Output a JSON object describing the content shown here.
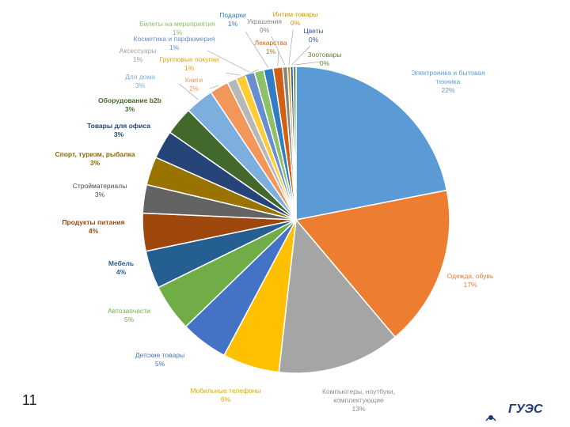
{
  "slide": {
    "number": "11",
    "logo_text": "ГУЭС"
  },
  "chart_data": {
    "type": "pie",
    "slices": [
      {
        "label": "Электроника и бытовая техника",
        "pct_label": "22%",
        "value": 22,
        "color": "#5B9BD5",
        "label_color": "#5B9BD5",
        "bold": false
      },
      {
        "label": "Одежда, обувь",
        "pct_label": "17%",
        "value": 17,
        "color": "#ED7D31",
        "label_color": "#ED7D31",
        "bold": false
      },
      {
        "label": "Компьютеры, ноутбуки, комплектующие",
        "pct_label": "13%",
        "value": 13,
        "color": "#A5A5A5",
        "label_color": "#8C8C8C",
        "bold": false
      },
      {
        "label": "Мобильные телефоны",
        "pct_label": "6%",
        "value": 6,
        "color": "#FFC000",
        "label_color": "#E0A800",
        "bold": false
      },
      {
        "label": "Детские товары",
        "pct_label": "5%",
        "value": 5,
        "color": "#4472C4",
        "label_color": "#4472C4",
        "bold": false
      },
      {
        "label": "Автозапчасти",
        "pct_label": "5%",
        "value": 5,
        "color": "#70AD47",
        "label_color": "#70AD47",
        "bold": false
      },
      {
        "label": "Мебель",
        "pct_label": "4%",
        "value": 4,
        "color": "#255E91",
        "label_color": "#255E91",
        "bold": true
      },
      {
        "label": "Продукты питания",
        "pct_label": "4%",
        "value": 4,
        "color": "#9E480E",
        "label_color": "#9E480E",
        "bold": true
      },
      {
        "label": "Стройматериалы",
        "pct_label": "3%",
        "value": 3,
        "color": "#636363",
        "label_color": "#4A4A4A",
        "bold": false
      },
      {
        "label": "Спорт, туризм, рыбалка",
        "pct_label": "3%",
        "value": 3,
        "color": "#997300",
        "label_color": "#8A6800",
        "bold": true
      },
      {
        "label": "Товары для офиса",
        "pct_label": "3%",
        "value": 3,
        "color": "#264478",
        "label_color": "#264478",
        "bold": true
      },
      {
        "label": "Оборудование b2b",
        "pct_label": "3%",
        "value": 3,
        "color": "#43682B",
        "label_color": "#43682B",
        "bold": true
      },
      {
        "label": "Для дома",
        "pct_label": "3%",
        "value": 3,
        "color": "#7CAFDD",
        "label_color": "#7CAFDD",
        "bold": false
      },
      {
        "label": "Книги",
        "pct_label": "2%",
        "value": 2,
        "color": "#F1975A",
        "label_color": "#F1975A",
        "bold": false
      },
      {
        "label": "Аксессуары",
        "pct_label": "1%",
        "value": 1,
        "color": "#B7B7B7",
        "label_color": "#A0A0A0",
        "bold": false
      },
      {
        "label": "Групповые покупки",
        "pct_label": "1%",
        "value": 1,
        "color": "#FFCD33",
        "label_color": "#E0A800",
        "bold": false
      },
      {
        "label": "Косметика и парфюмерия",
        "pct_label": "1%",
        "value": 1,
        "color": "#698ED0",
        "label_color": "#698ED0",
        "bold": false
      },
      {
        "label": "Билеты на мероприятия",
        "pct_label": "1%",
        "value": 1,
        "color": "#8CC168",
        "label_color": "#8CC168",
        "bold": false
      },
      {
        "label": "Подарки",
        "pct_label": "1%",
        "value": 1,
        "color": "#327DC2",
        "label_color": "#327DC2",
        "bold": false
      },
      {
        "label": "Лекарства",
        "pct_label": "1%",
        "value": 1,
        "color": "#D26012",
        "label_color": "#D26012",
        "bold": false
      },
      {
        "label": "Украшения",
        "pct_label": "0%",
        "value": 0.5,
        "color": "#848484",
        "label_color": "#848484",
        "bold": false
      },
      {
        "label": "Интим-товары",
        "pct_label": "0%",
        "value": 0.3,
        "color": "#CC9A06",
        "label_color": "#CC9A06",
        "bold": false
      },
      {
        "label": "Цветы",
        "pct_label": "0%",
        "value": 0.3,
        "color": "#335AA1",
        "label_color": "#335AA1",
        "bold": false
      },
      {
        "label": "Зоотовары",
        "pct_label": "0%",
        "value": 0.3,
        "color": "#5A8A39",
        "label_color": "#5A8A39",
        "bold": false
      }
    ]
  }
}
